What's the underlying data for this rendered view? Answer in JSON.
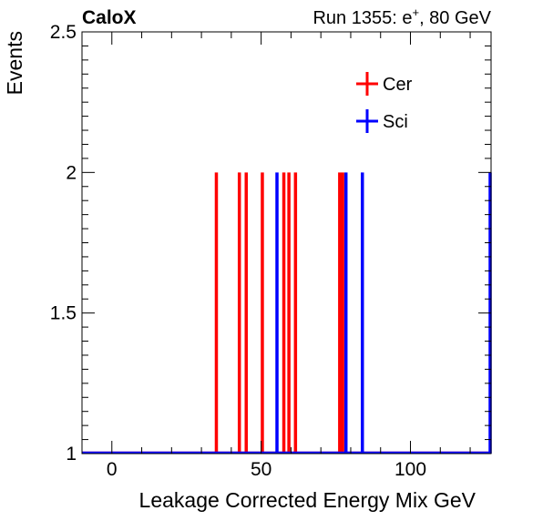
{
  "header": {
    "experiment": "CaloX",
    "run_prefix": "Run 1355: e",
    "run_sup": "+",
    "run_suffix": ", 80 GeV"
  },
  "chart_data": {
    "type": "line",
    "xlabel": "Leakage Corrected Energy Mix GeV",
    "ylabel": "Events",
    "xlim": [
      -10,
      127
    ],
    "ylim": [
      1,
      2.5
    ],
    "x_ticks": [
      {
        "value": 0,
        "label": "0"
      },
      {
        "value": 50,
        "label": "50"
      },
      {
        "value": 100,
        "label": "100"
      }
    ],
    "y_ticks": [
      {
        "value": 1,
        "label": "1"
      },
      {
        "value": 1.5,
        "label": "1.5"
      },
      {
        "value": 2,
        "label": "2"
      },
      {
        "value": 2.5,
        "label": "2.5"
      }
    ],
    "grid": false,
    "legend_position": "top-right",
    "series": [
      {
        "name": "Cer",
        "color": "#ff0000",
        "spikes": [
          {
            "x": 35,
            "y": 2
          },
          {
            "x": 42.7,
            "y": 2
          },
          {
            "x": 45,
            "y": 2
          },
          {
            "x": 50.4,
            "y": 2
          },
          {
            "x": 57.6,
            "y": 2
          },
          {
            "x": 59.3,
            "y": 2
          },
          {
            "x": 61.5,
            "y": 2
          },
          {
            "x": 76.3,
            "y": 2
          },
          {
            "x": 77.3,
            "y": 2
          }
        ]
      },
      {
        "name": "Sci",
        "color": "#0000ff",
        "spikes": [
          {
            "x": 55.3,
            "y": 2
          },
          {
            "x": 78.4,
            "y": 2
          },
          {
            "x": 83.9,
            "y": 2
          },
          {
            "x": 126.8,
            "y": 2
          }
        ]
      }
    ]
  }
}
